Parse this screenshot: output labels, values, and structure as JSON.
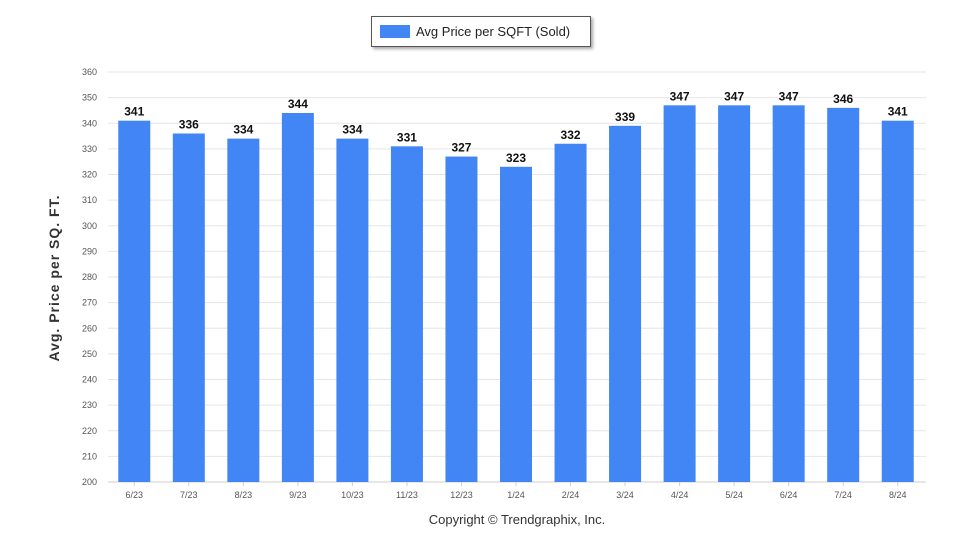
{
  "chart_data": {
    "type": "bar",
    "categories": [
      "6/23",
      "7/23",
      "8/23",
      "9/23",
      "10/23",
      "11/23",
      "12/23",
      "1/24",
      "2/24",
      "3/24",
      "4/24",
      "5/24",
      "6/24",
      "7/24",
      "8/24"
    ],
    "series": [
      {
        "name": "Avg Price per SQFT (Sold)",
        "values": [
          341,
          336,
          334,
          344,
          334,
          331,
          327,
          323,
          332,
          339,
          347,
          347,
          347,
          346,
          341
        ],
        "color": "#4285F4"
      }
    ],
    "ylabel": "Avg. Price per SQ. FT.",
    "xlabel": "",
    "ylim": [
      200,
      360
    ],
    "yticks": [
      200,
      210,
      220,
      230,
      240,
      250,
      260,
      270,
      280,
      290,
      300,
      310,
      320,
      330,
      340,
      350,
      360
    ],
    "grid": true,
    "legend_position": "top-center"
  },
  "footer": {
    "copyright": "Copyright © Trendgraphix, Inc."
  }
}
